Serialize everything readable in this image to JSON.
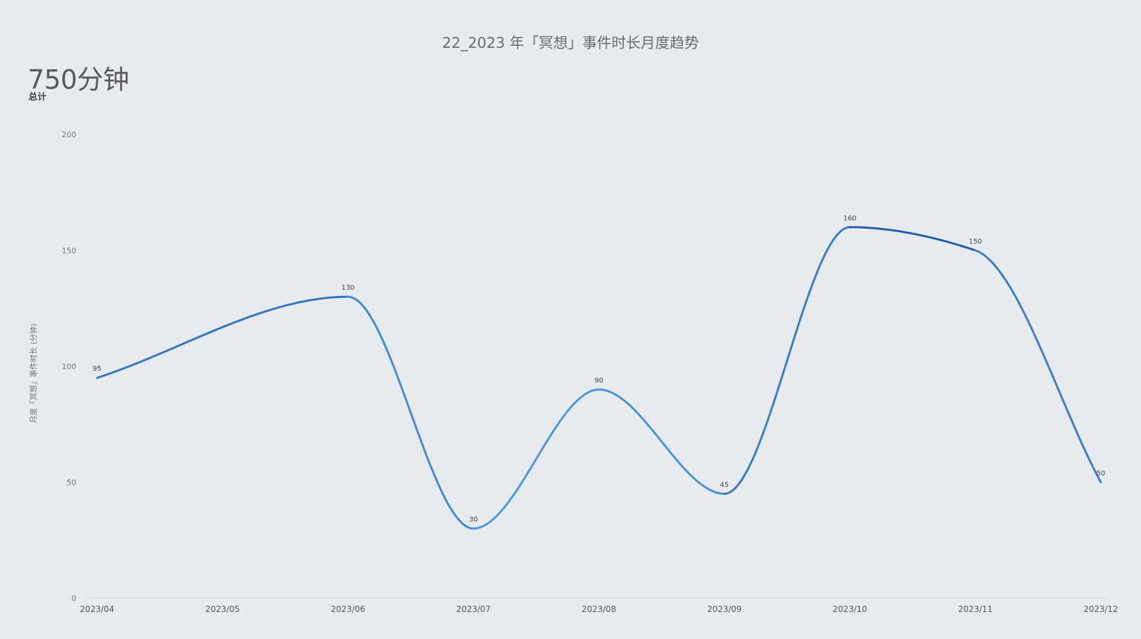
{
  "header": {
    "title": "22_2023 年「冥想」事件时长月度趋势",
    "total_value": "750分钟",
    "total_label": "总计"
  },
  "chart_data": {
    "type": "line",
    "title": "22_2023 年「冥想」事件时长月度趋势",
    "xlabel": "",
    "ylabel": "月度「冥想」事件时长 (分钟)",
    "categories": [
      "2023/04",
      "2023/05",
      "2023/06",
      "2023/07",
      "2023/08",
      "2023/09",
      "2023/10",
      "2023/11",
      "2023/12"
    ],
    "series": [
      {
        "points": [
          {
            "x": "2023/04",
            "y": 95
          },
          {
            "x": "2023/06",
            "y": 130
          },
          {
            "x": "2023/07",
            "y": 30
          },
          {
            "x": "2023/08",
            "y": 90
          },
          {
            "x": "2023/09",
            "y": 45
          },
          {
            "x": "2023/10",
            "y": 160
          },
          {
            "x": "2023/11",
            "y": 150
          },
          {
            "x": "2023/12",
            "y": 50
          }
        ]
      }
    ],
    "yticks": [
      0,
      50,
      100,
      150,
      200
    ],
    "ylim": [
      0,
      200
    ],
    "grid": false,
    "smooth": true,
    "color_low": "#5aaae6",
    "color_high": "#1f5aa6"
  }
}
